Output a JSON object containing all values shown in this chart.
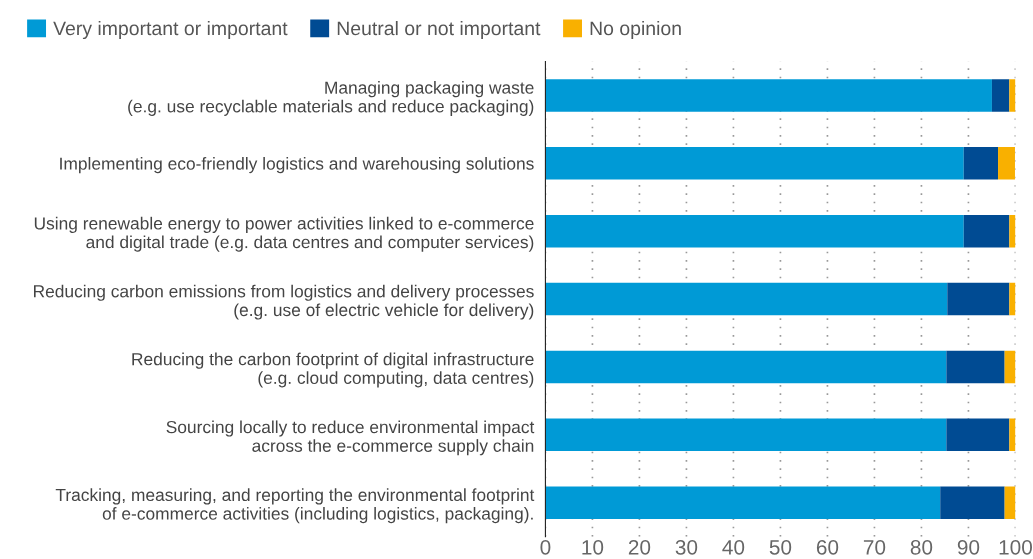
{
  "chart_data": {
    "type": "bar",
    "orientation": "horizontal",
    "stacked": true,
    "categories": [
      "Managing packaging waste\n(e.g. use recyclable materials and reduce packaging)",
      "Implementing eco-friendly logistics and warehousing solutions",
      "Using renewable energy to power activities linked to e-commerce\nand digital trade (e.g. data centres and computer services)",
      "Reducing carbon emissions from logistics and delivery processes\n(e.g. use of electric vehicle for delivery)",
      "Reducing the carbon footprint of digital infrastructure\n(e.g. cloud computing, data centres)",
      "Sourcing locally to reduce environmental impact\nacross the e-commerce supply chain",
      "Tracking, measuring, and reporting the environmental footprint\nof e-commerce activities (including logistics, packaging)."
    ],
    "series": [
      {
        "name": "Very important or important",
        "color": "#009ad6",
        "values": [
          95,
          89,
          89,
          85.5,
          85.3,
          85.3,
          84
        ]
      },
      {
        "name": "Neutral or not important",
        "color": "#004b93",
        "values": [
          3.7,
          7.3,
          9.7,
          13.2,
          12.4,
          13.4,
          13.7
        ]
      },
      {
        "name": "No opinion",
        "color": "#f9b000",
        "values": [
          1.3,
          3.6,
          1.3,
          1.3,
          2.3,
          1.3,
          2.3
        ]
      }
    ],
    "xlim": [
      0,
      100
    ],
    "xticks": [
      0,
      10,
      20,
      30,
      40,
      50,
      60,
      70,
      80,
      90,
      100
    ],
    "grid": "x",
    "legend": "top left"
  }
}
